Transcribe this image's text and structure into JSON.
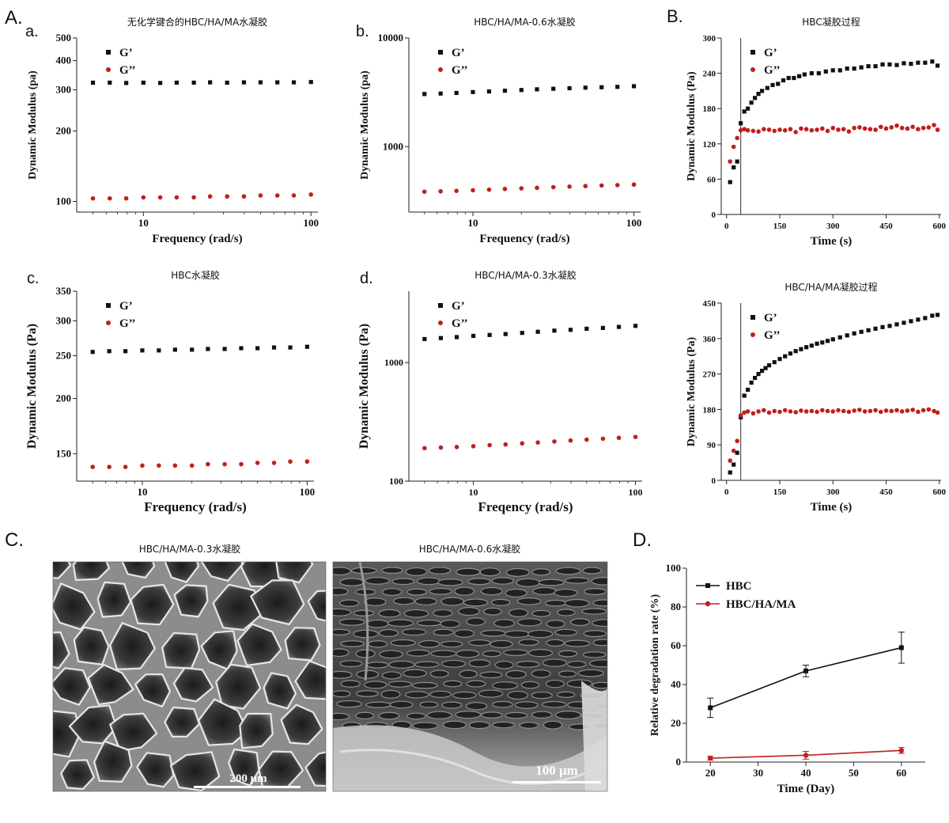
{
  "panel_letters": {
    "A": "A.",
    "a": "a.",
    "b": "b.",
    "B": "B.",
    "c": "c.",
    "d": "d.",
    "C": "C.",
    "D": "D."
  },
  "colors": {
    "gp": "#111111",
    "gpp": "#c0201c"
  },
  "sem": {
    "left": {
      "title": "HBC/HA/MA-0.3水凝胶",
      "scale": "200 μm"
    },
    "right": {
      "title": "HBC/HA/MA-0.6水凝胶",
      "scale": "100 μm"
    }
  },
  "chart_data": [
    {
      "id": "a",
      "type": "scatter",
      "title": "无化学键合的HBC/HA/MA水凝胶",
      "xlabel": "Frequency (rad/s)",
      "ylabel": "Dynamic Modulus (pa)",
      "xscale": "log",
      "yscale": "log",
      "xlim": [
        4,
        110
      ],
      "ylim": [
        90,
        500
      ],
      "xticks": [
        10,
        100
      ],
      "yticks": [
        100,
        200,
        300,
        400,
        500
      ],
      "legend": "top-left",
      "series": [
        {
          "name": "G’",
          "x": [
            5,
            6.3,
            7.9,
            10,
            12.6,
            15.8,
            20,
            25,
            31.6,
            39.8,
            50,
            63,
            79,
            100
          ],
          "y": [
            322,
            322,
            321,
            322,
            321,
            322,
            322,
            323,
            322,
            323,
            323,
            323,
            323,
            324
          ]
        },
        {
          "name": "G’’",
          "x": [
            5,
            6.3,
            7.9,
            10,
            12.6,
            15.8,
            20,
            25,
            31.6,
            39.8,
            50,
            63,
            79,
            100
          ],
          "y": [
            103,
            103,
            103,
            104,
            104,
            104,
            104,
            105,
            105,
            105,
            106,
            106,
            106,
            107
          ]
        }
      ]
    },
    {
      "id": "b",
      "type": "scatter",
      "title": "HBC/HA/MA-0.6水凝胶",
      "xlabel": "Frequency (rad/s)",
      "ylabel": "Dynamic Modulus (pa)",
      "xscale": "log",
      "yscale": "log",
      "xlim": [
        4,
        110
      ],
      "ylim": [
        250,
        10000
      ],
      "xticks": [
        10,
        100
      ],
      "yticks": [
        1000,
        10000
      ],
      "legend": "top-left",
      "series": [
        {
          "name": "G’",
          "x": [
            5,
            6.3,
            7.9,
            10,
            12.6,
            15.8,
            20,
            25,
            31.6,
            39.8,
            50,
            63,
            79,
            100
          ],
          "y": [
            3050,
            3080,
            3120,
            3180,
            3220,
            3270,
            3320,
            3370,
            3410,
            3450,
            3490,
            3520,
            3550,
            3600
          ]
        },
        {
          "name": "G’’",
          "x": [
            5,
            6.3,
            7.9,
            10,
            12.6,
            15.8,
            20,
            25,
            31.6,
            39.8,
            50,
            63,
            79,
            100
          ],
          "y": [
            385,
            388,
            392,
            397,
            402,
            408,
            413,
            418,
            424,
            429,
            434,
            439,
            443,
            448
          ]
        }
      ]
    },
    {
      "id": "B1",
      "type": "scatter",
      "title": "HBC凝胶过程",
      "xlabel": "Time (s)",
      "ylabel": "Dynamic Modulus (Pa)",
      "xlim": [
        -15,
        605
      ],
      "ylim": [
        0,
        300
      ],
      "xticks": [
        0,
        150,
        300,
        450,
        600
      ],
      "yticks": [
        0,
        60,
        120,
        180,
        240,
        300
      ],
      "legend": "top-left",
      "vline": 40,
      "series": [
        {
          "name": "G’",
          "x": [
            10,
            20,
            30,
            40,
            50,
            60,
            70,
            80,
            90,
            100,
            115,
            130,
            145,
            160,
            175,
            190,
            205,
            220,
            240,
            260,
            280,
            300,
            320,
            340,
            360,
            380,
            400,
            420,
            440,
            460,
            480,
            500,
            520,
            540,
            560,
            580,
            595
          ],
          "y": [
            55,
            80,
            90,
            155,
            175,
            180,
            190,
            198,
            205,
            210,
            215,
            220,
            222,
            228,
            232,
            232,
            235,
            238,
            240,
            240,
            243,
            245,
            245,
            248,
            248,
            250,
            252,
            252,
            255,
            255,
            254,
            257,
            256,
            258,
            258,
            260,
            253
          ]
        },
        {
          "name": "G’’",
          "x": [
            10,
            20,
            30,
            40,
            50,
            60,
            75,
            90,
            105,
            120,
            135,
            150,
            165,
            180,
            195,
            210,
            225,
            240,
            255,
            270,
            285,
            300,
            315,
            330,
            345,
            360,
            375,
            390,
            405,
            420,
            435,
            450,
            465,
            480,
            495,
            510,
            525,
            540,
            555,
            570,
            585,
            595
          ],
          "y": [
            90,
            115,
            130,
            143,
            145,
            143,
            142,
            141,
            145,
            144,
            142,
            144,
            143,
            145,
            140,
            146,
            145,
            143,
            144,
            146,
            142,
            147,
            144,
            145,
            141,
            147,
            148,
            146,
            145,
            144,
            149,
            146,
            148,
            151,
            147,
            146,
            149,
            145,
            147,
            148,
            152,
            144
          ]
        }
      ]
    },
    {
      "id": "c",
      "type": "scatter",
      "title": "HBC水凝胶",
      "xlabel": "Frequency (rad/s)",
      "ylabel": "Dynamic Modulus (Pa)",
      "xscale": "log",
      "yscale": "log",
      "xlim": [
        4,
        110
      ],
      "ylim": [
        130,
        350
      ],
      "xticks": [
        10,
        100
      ],
      "yticks": [
        150,
        200,
        250,
        300,
        350
      ],
      "legend": "top-left",
      "series": [
        {
          "name": "G’",
          "x": [
            5,
            6.3,
            7.9,
            10,
            12.6,
            15.8,
            20,
            25,
            31.6,
            39.8,
            50,
            63,
            79,
            100
          ],
          "y": [
            255,
            256,
            256,
            257,
            257,
            258,
            258,
            259,
            259,
            260,
            260,
            261,
            261,
            262
          ]
        },
        {
          "name": "G’’",
          "x": [
            5,
            6.3,
            7.9,
            10,
            12.6,
            15.8,
            20,
            25,
            31.6,
            39.8,
            50,
            63,
            79,
            100
          ],
          "y": [
            140,
            140,
            140,
            141,
            141,
            141,
            141,
            142,
            142,
            142,
            143,
            143,
            144,
            144
          ]
        }
      ]
    },
    {
      "id": "d",
      "type": "scatter",
      "title": "HBC/HA/MA-0.3水凝胶",
      "xlabel": "Freqency (rad/s)",
      "ylabel": "Dynamic Modulus (Pa)",
      "xscale": "log",
      "yscale": "log",
      "xlim": [
        4,
        110
      ],
      "ylim": [
        100,
        4000
      ],
      "xticks": [
        10,
        100
      ],
      "yticks": [
        100,
        1000
      ],
      "legend": "top-left",
      "series": [
        {
          "name": "G’",
          "x": [
            5,
            6.3,
            7.9,
            10,
            12.6,
            15.8,
            20,
            25,
            31.6,
            39.8,
            50,
            63,
            79,
            100
          ],
          "y": [
            1580,
            1610,
            1640,
            1680,
            1710,
            1740,
            1780,
            1820,
            1860,
            1890,
            1930,
            1960,
            2000,
            2040
          ]
        },
        {
          "name": "G’’",
          "x": [
            5,
            6.3,
            7.9,
            10,
            12.6,
            15.8,
            20,
            25,
            31.6,
            39.8,
            50,
            63,
            79,
            100
          ],
          "y": [
            190,
            192,
            194,
            197,
            201,
            204,
            208,
            212,
            216,
            220,
            224,
            228,
            232,
            236
          ]
        }
      ]
    },
    {
      "id": "B2",
      "type": "scatter",
      "title": "HBC/HA/MA凝胶过程",
      "xlabel": "Time (s)",
      "ylabel": "Dynamic Modulus (Pa)",
      "xlim": [
        -15,
        605
      ],
      "ylim": [
        0,
        450
      ],
      "xticks": [
        0,
        150,
        300,
        450,
        600
      ],
      "yticks": [
        0,
        90,
        180,
        270,
        360,
        450
      ],
      "legend": "top-left",
      "vline": 40,
      "series": [
        {
          "name": "G’",
          "x": [
            10,
            20,
            30,
            40,
            50,
            60,
            70,
            80,
            90,
            100,
            110,
            120,
            135,
            150,
            165,
            180,
            195,
            210,
            225,
            240,
            255,
            270,
            285,
            300,
            320,
            340,
            360,
            380,
            400,
            420,
            440,
            460,
            480,
            500,
            520,
            540,
            560,
            580,
            595
          ],
          "y": [
            20,
            40,
            70,
            160,
            215,
            230,
            248,
            260,
            270,
            278,
            285,
            292,
            300,
            308,
            315,
            322,
            328,
            333,
            338,
            342,
            347,
            350,
            354,
            358,
            363,
            368,
            373,
            377,
            381,
            385,
            389,
            392,
            396,
            400,
            404,
            408,
            412,
            418,
            420
          ]
        },
        {
          "name": "G’’",
          "x": [
            10,
            20,
            30,
            40,
            50,
            60,
            75,
            90,
            105,
            120,
            135,
            150,
            165,
            180,
            195,
            210,
            225,
            240,
            255,
            270,
            285,
            300,
            315,
            330,
            345,
            360,
            375,
            390,
            405,
            420,
            435,
            450,
            465,
            480,
            495,
            510,
            525,
            540,
            555,
            570,
            585,
            595
          ],
          "y": [
            50,
            75,
            100,
            165,
            172,
            175,
            170,
            175,
            178,
            172,
            176,
            174,
            178,
            175,
            173,
            177,
            175,
            176,
            174,
            178,
            176,
            175,
            178,
            176,
            174,
            177,
            179,
            175,
            176,
            178,
            174,
            177,
            176,
            178,
            175,
            177,
            179,
            174,
            178,
            180,
            176,
            172
          ]
        }
      ]
    },
    {
      "id": "D",
      "type": "line",
      "title": "",
      "xlabel": "Time (Day)",
      "ylabel": "Relative degradation rate (%)",
      "xlim": [
        15,
        65
      ],
      "ylim": [
        0,
        100
      ],
      "xticks": [
        20,
        30,
        40,
        50,
        60
      ],
      "yticks": [
        0,
        20,
        40,
        60,
        80,
        100
      ],
      "legend": "top-left",
      "series": [
        {
          "name": "HBC",
          "x": [
            20,
            40,
            60
          ],
          "y": [
            28,
            47,
            59
          ],
          "err": [
            5,
            3,
            8
          ]
        },
        {
          "name": "HBC/HA/MA",
          "x": [
            20,
            40,
            60
          ],
          "y": [
            2,
            3.5,
            6
          ],
          "err": [
            1,
            2,
            1.5
          ]
        }
      ]
    }
  ]
}
